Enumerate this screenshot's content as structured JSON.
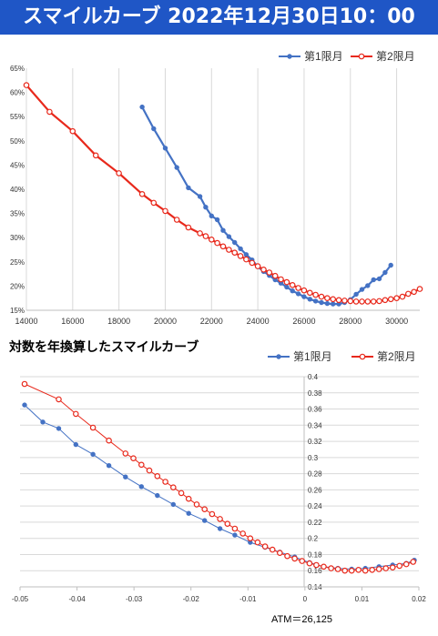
{
  "header": {
    "title": "スマイルカーブ  2022年12月30日10：00"
  },
  "colors": {
    "header_bg": "#1f56c6",
    "series1": "#4472c4",
    "series2": "#e8291c"
  },
  "chart_data": [
    {
      "type": "line",
      "title": "",
      "xlim": [
        14000,
        31000
      ],
      "ylim": [
        15,
        65
      ],
      "x_ticks": [
        "14000",
        "16000",
        "18000",
        "20000",
        "22000",
        "24000",
        "26000",
        "28000",
        "30000"
      ],
      "y_ticks": [
        "15%",
        "20%",
        "25%",
        "30%",
        "35%",
        "40%",
        "45%",
        "50%",
        "55%",
        "60%",
        "65%"
      ],
      "grid": "vertical",
      "legend": "top-right",
      "series": [
        {
          "name": "第1限月",
          "points": [
            [
              19000,
              57
            ],
            [
              19500,
              52.5
            ],
            [
              20000,
              48.5
            ],
            [
              20500,
              44.5
            ],
            [
              21000,
              40.3
            ],
            [
              21500,
              38.5
            ],
            [
              21750,
              36.3
            ],
            [
              22000,
              34.5
            ],
            [
              22250,
              33.7
            ],
            [
              22500,
              31.5
            ],
            [
              22750,
              30.2
            ],
            [
              23000,
              29
            ],
            [
              23250,
              27.7
            ],
            [
              23500,
              26.5
            ],
            [
              23750,
              25.4
            ],
            [
              24000,
              24
            ],
            [
              24250,
              23
            ],
            [
              24500,
              22.2
            ],
            [
              24750,
              21.3
            ],
            [
              25000,
              20.6
            ],
            [
              25250,
              19.8
            ],
            [
              25500,
              19
            ],
            [
              25750,
              18.4
            ],
            [
              26000,
              17.8
            ],
            [
              26250,
              17.3
            ],
            [
              26500,
              16.9
            ],
            [
              26750,
              16.6
            ],
            [
              27000,
              16.4
            ],
            [
              27250,
              16.3
            ],
            [
              27500,
              16.3
            ],
            [
              27750,
              16.6
            ],
            [
              28000,
              17.2
            ],
            [
              28250,
              18.3
            ],
            [
              28500,
              19.3
            ],
            [
              28750,
              20.1
            ],
            [
              29000,
              21.3
            ],
            [
              29250,
              21.5
            ],
            [
              29500,
              22.8
            ],
            [
              29750,
              24.3
            ]
          ]
        },
        {
          "name": "第2限月",
          "points": [
            [
              14000,
              61.5
            ],
            [
              15000,
              56
            ],
            [
              16000,
              52
            ],
            [
              17000,
              47
            ],
            [
              18000,
              43.3
            ],
            [
              19000,
              39
            ],
            [
              19500,
              37.2
            ],
            [
              20000,
              35.5
            ],
            [
              20500,
              33.7
            ],
            [
              21000,
              32.1
            ],
            [
              21500,
              30.9
            ],
            [
              21750,
              30.3
            ],
            [
              22000,
              29.6
            ],
            [
              22250,
              28.9
            ],
            [
              22500,
              28.2
            ],
            [
              22750,
              27.5
            ],
            [
              23000,
              26.9
            ],
            [
              23250,
              26.2
            ],
            [
              23500,
              25.5
            ],
            [
              23750,
              24.8
            ],
            [
              24000,
              24.1
            ],
            [
              24250,
              23.4
            ],
            [
              24500,
              22.8
            ],
            [
              24750,
              22.1
            ],
            [
              25000,
              21.4
            ],
            [
              25250,
              20.8
            ],
            [
              25500,
              20.2
            ],
            [
              25750,
              19.6
            ],
            [
              26000,
              19.1
            ],
            [
              26250,
              18.6
            ],
            [
              26500,
              18.2
            ],
            [
              26750,
              17.8
            ],
            [
              27000,
              17.5
            ],
            [
              27250,
              17.3
            ],
            [
              27500,
              17.1
            ],
            [
              27750,
              17
            ],
            [
              28000,
              16.9
            ],
            [
              28250,
              16.8
            ],
            [
              28500,
              16.8
            ],
            [
              28750,
              16.8
            ],
            [
              29000,
              16.8
            ],
            [
              29250,
              16.9
            ],
            [
              29500,
              17.1
            ],
            [
              29750,
              17.3
            ],
            [
              30000,
              17.5
            ],
            [
              30250,
              17.8
            ],
            [
              30500,
              18.4
            ],
            [
              30750,
              18.8
            ],
            [
              31000,
              19.4
            ]
          ]
        }
      ]
    },
    {
      "type": "line",
      "title": "対数を年換算したスマイルカーブ",
      "xlim": [
        -0.05,
        0.02
      ],
      "ylim": [
        0.14,
        0.4
      ],
      "x_ticks": [
        "-0.05",
        "-0.04",
        "-0.03",
        "-0.02",
        "-0.01",
        "0",
        "0.01",
        "0.02"
      ],
      "y_ticks": [
        "0.14",
        "0.16",
        "0.18",
        "0.2",
        "0.22",
        "0.24",
        "0.26",
        "0.28",
        "0.3",
        "0.32",
        "0.34",
        "0.36",
        "0.38",
        "0.4"
      ],
      "grid": "horizontal",
      "legend": "top-right",
      "series": [
        {
          "name": "第1限月",
          "points": [
            [
              -0.0492,
              0.365
            ],
            [
              -0.046,
              0.344
            ],
            [
              -0.0432,
              0.336
            ],
            [
              -0.0402,
              0.316
            ],
            [
              -0.0372,
              0.304
            ],
            [
              -0.0344,
              0.29
            ],
            [
              -0.0315,
              0.276
            ],
            [
              -0.0287,
              0.264
            ],
            [
              -0.0259,
              0.253
            ],
            [
              -0.0231,
              0.242
            ],
            [
              -0.0204,
              0.231
            ],
            [
              -0.0176,
              0.222
            ],
            [
              -0.0149,
              0.212
            ],
            [
              -0.0123,
              0.204
            ],
            [
              -0.0096,
              0.195
            ],
            [
              -0.007,
              0.189
            ],
            [
              -0.0044,
              0.183
            ],
            [
              -0.0018,
              0.177
            ],
            [
              0.0008,
              0.17
            ],
            [
              0.0033,
              0.165
            ],
            [
              0.0058,
              0.163
            ],
            [
              0.0082,
              0.162
            ],
            [
              0.0106,
              0.163
            ],
            [
              0.013,
              0.165
            ],
            [
              0.0154,
              0.167
            ],
            [
              0.0178,
              0.169
            ],
            [
              0.0192,
              0.173
            ]
          ]
        },
        {
          "name": "第2限月",
          "points": [
            [
              -0.0492,
              0.391
            ],
            [
              -0.0432,
              0.372
            ],
            [
              -0.0402,
              0.354
            ],
            [
              -0.0372,
              0.337
            ],
            [
              -0.0344,
              0.321
            ],
            [
              -0.0315,
              0.305
            ],
            [
              -0.0301,
              0.299
            ],
            [
              -0.0287,
              0.291
            ],
            [
              -0.0273,
              0.284
            ],
            [
              -0.0259,
              0.277
            ],
            [
              -0.0245,
              0.27
            ],
            [
              -0.0231,
              0.263
            ],
            [
              -0.0217,
              0.256
            ],
            [
              -0.0204,
              0.249
            ],
            [
              -0.019,
              0.242
            ],
            [
              -0.0176,
              0.236
            ],
            [
              -0.0163,
              0.23
            ],
            [
              -0.0149,
              0.224
            ],
            [
              -0.0136,
              0.218
            ],
            [
              -0.0123,
              0.212
            ],
            [
              -0.0109,
              0.206
            ],
            [
              -0.0096,
              0.2
            ],
            [
              -0.0083,
              0.195
            ],
            [
              -0.007,
              0.19
            ],
            [
              -0.0057,
              0.186
            ],
            [
              -0.0044,
              0.182
            ],
            [
              -0.0031,
              0.178
            ],
            [
              -0.0018,
              0.175
            ],
            [
              -0.0005,
              0.172
            ],
            [
              0.0008,
              0.169
            ],
            [
              0.002,
              0.167
            ],
            [
              0.0033,
              0.165
            ],
            [
              0.0046,
              0.163
            ],
            [
              0.0058,
              0.162
            ],
            [
              0.007,
              0.16
            ],
            [
              0.0082,
              0.16
            ],
            [
              0.0094,
              0.161
            ],
            [
              0.0106,
              0.16
            ],
            [
              0.0118,
              0.161
            ],
            [
              0.013,
              0.162
            ],
            [
              0.0142,
              0.163
            ],
            [
              0.0154,
              0.164
            ],
            [
              0.0166,
              0.166
            ],
            [
              0.0178,
              0.168
            ],
            [
              0.019,
              0.171
            ]
          ]
        }
      ]
    }
  ],
  "atm_label": "ATM＝26,125"
}
